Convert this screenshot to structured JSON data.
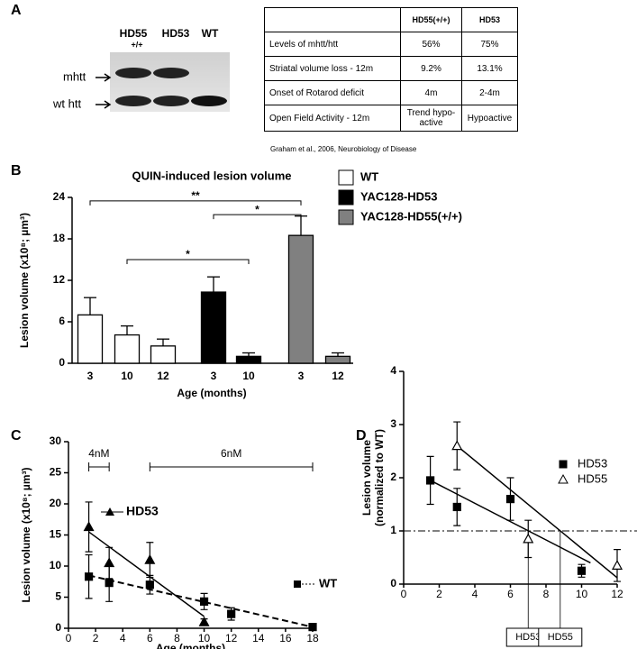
{
  "panel_labels": [
    "A",
    "B",
    "C",
    "D"
  ],
  "gel": {
    "lanes": [
      "HD55",
      "HD53",
      "WT"
    ],
    "lane_note": "+/+",
    "bands": [
      "mhtt",
      "wt htt"
    ]
  },
  "table": {
    "columns": [
      "HD55(+/+)",
      "HD53"
    ],
    "rows": [
      [
        "Levels of mhtt/htt",
        "56%",
        "75%"
      ],
      [
        "Striatal volume loss - 12m",
        "9.2%",
        "13.1%"
      ],
      [
        "Onset of Rotarod deficit",
        "4m",
        "2-4m"
      ],
      [
        "Open Field Activity - 12m",
        "Trend hypo-active",
        "Hypoactive"
      ]
    ],
    "citation": "Graham et al., 2006, Neurobiology of Disease"
  },
  "chart_data": [
    {
      "type": "bar",
      "title": "QUIN-induced lesion volume",
      "ylabel": "Lesion volume (x10⁸; µm³)",
      "xlabel": "Age (months)",
      "categories": [
        "3",
        "10",
        "12",
        "3",
        "10",
        "3",
        "12"
      ],
      "ylim": [
        0,
        24
      ],
      "yticks": [
        0,
        6,
        12,
        18,
        24
      ],
      "series": [
        {
          "name": "WT",
          "color": "#ffffff",
          "values": [
            7.0,
            4.1,
            2.5,
            null,
            null,
            null,
            null
          ],
          "errors": [
            2.5,
            1.3,
            1.0,
            null,
            null,
            null,
            null
          ]
        },
        {
          "name": "YAC128-HD53",
          "color": "#000000",
          "values": [
            null,
            null,
            null,
            10.3,
            1.0,
            null,
            null
          ],
          "errors": [
            null,
            null,
            null,
            2.2,
            0.5,
            null,
            null
          ]
        },
        {
          "name": "YAC128-HD55(+/+)",
          "color": "#808080",
          "values": [
            null,
            null,
            null,
            null,
            null,
            18.5,
            1.0
          ],
          "errors": [
            null,
            null,
            null,
            null,
            null,
            2.8,
            0.5
          ]
        }
      ],
      "brackets": [
        {
          "label": "**",
          "from": 0,
          "to": 5,
          "y": 23.5
        },
        {
          "label": "*",
          "from": 3,
          "to": 5,
          "y": 21.5
        },
        {
          "label": "*",
          "from": 1,
          "to": 4,
          "y": 15
        }
      ]
    },
    {
      "type": "scatter",
      "ylabel": "Lesion volume (x10⁸; µm³)",
      "xlabel": "Age (months)",
      "xlim": [
        0,
        18
      ],
      "xticks": [
        0,
        2,
        4,
        6,
        8,
        10,
        12,
        14,
        16,
        18
      ],
      "ylim": [
        0,
        30
      ],
      "yticks": [
        0,
        5,
        10,
        15,
        20,
        25,
        30
      ],
      "legend": "inline",
      "series": [
        {
          "name": "HD53",
          "color": "#000000",
          "marker": "triangle",
          "filled": true,
          "line": "solid",
          "x": [
            1.5,
            3,
            6,
            10
          ],
          "values": [
            16.3,
            10.5,
            11,
            1
          ],
          "errors": [
            4,
            2.5,
            2.8,
            0.5
          ],
          "fit": {
            "x": [
              1.5,
              10
            ],
            "y": [
              15.5,
              1.9
            ]
          }
        },
        {
          "name": "WT",
          "color": "#000000",
          "marker": "square",
          "filled": true,
          "line": "dashed",
          "x": [
            1.5,
            3,
            6,
            10,
            12,
            18
          ],
          "values": [
            8.3,
            7.3,
            7,
            4.3,
            2.3,
            0.2
          ],
          "errors": [
            3.5,
            3,
            1.5,
            1.3,
            1,
            0.3
          ],
          "fit": {
            "x": [
              1.5,
              18
            ],
            "y": [
              8.5,
              0.2
            ]
          }
        }
      ],
      "ranges": [
        {
          "label": "4nM",
          "from": 1.5,
          "to": 3
        },
        {
          "label": "6nM",
          "from": 6,
          "to": 18
        }
      ]
    },
    {
      "type": "scatter",
      "ylabel": [
        "Lesion volume",
        "(normalized to WT)"
      ],
      "xlim": [
        0,
        12
      ],
      "xticks": [
        0,
        2,
        4,
        6,
        8,
        10,
        12
      ],
      "ylim": [
        0,
        4
      ],
      "yticks": [
        0,
        1,
        2,
        3,
        4
      ],
      "legend": "upper right",
      "reference_line": 1,
      "series": [
        {
          "name": "HD53",
          "color": "#000000",
          "marker": "square",
          "filled": true,
          "line": "solid",
          "x": [
            1.5,
            3,
            6,
            10
          ],
          "values": [
            1.95,
            1.45,
            1.6,
            0.25
          ],
          "errors": [
            0.45,
            0.35,
            0.4,
            0.12
          ],
          "fit": {
            "x": [
              1.5,
              10.5
            ],
            "y": [
              1.95,
              0.4
            ]
          }
        },
        {
          "name": "HD55",
          "color": "#000000",
          "marker": "triangle",
          "filled": false,
          "line": "solid",
          "x": [
            3,
            7,
            12
          ],
          "values": [
            2.6,
            0.85,
            0.35
          ],
          "errors": [
            0.45,
            0.35,
            0.3
          ],
          "fit": {
            "x": [
              3,
              12
            ],
            "y": [
              2.6,
              0.12
            ]
          }
        }
      ],
      "crossings": [
        {
          "label": "HD53",
          "x": 7
        },
        {
          "label": "HD55",
          "x": 8.8
        }
      ]
    }
  ]
}
